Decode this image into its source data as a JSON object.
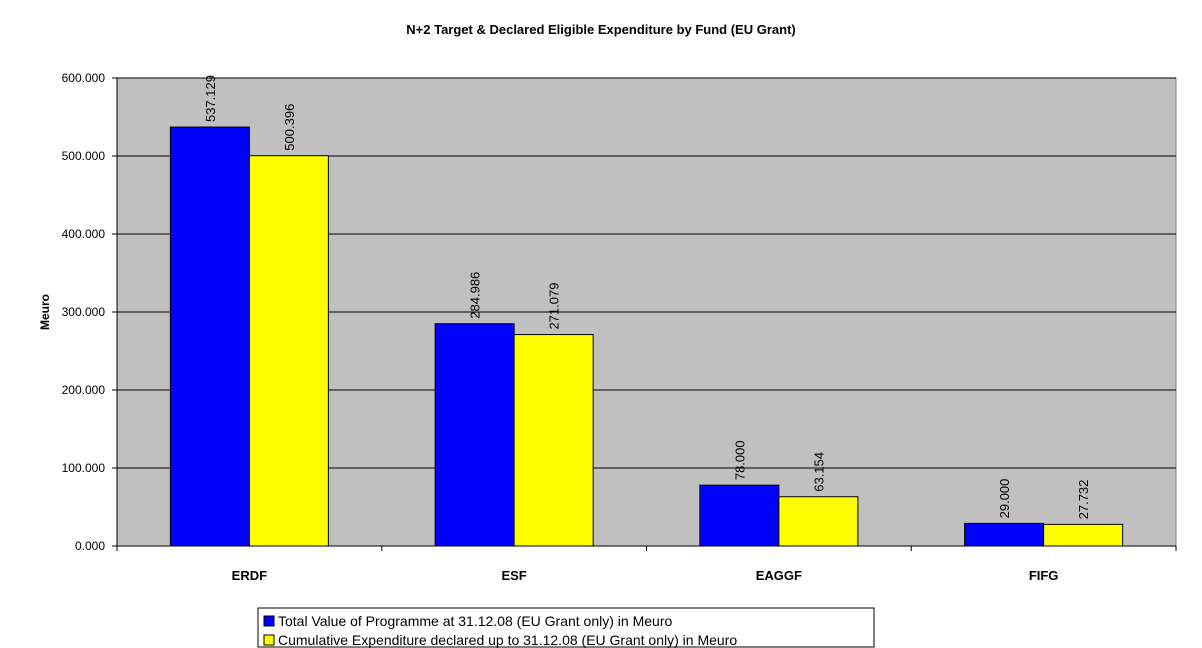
{
  "chart_data": {
    "type": "bar",
    "title": "N+2 Target & Declared Eligible Expenditure by Fund (EU Grant)",
    "y_label": "Meuro",
    "categories": [
      "ERDF",
      "ESF",
      "EAGGF",
      "FIFG"
    ],
    "series": [
      {
        "name": "Total Value of Programme at 31.12.08 (EU Grant only) in Meuro",
        "color": "#0000ff",
        "values": [
          537.129,
          284.986,
          78,
          29
        ],
        "value_labels": [
          "537.129",
          "284.986",
          "78.000",
          "29.000"
        ]
      },
      {
        "name": "Cumulative Expenditure declared up to 31.12.08 (EU Grant only) in Meuro",
        "color": "#ffff00",
        "values": [
          500.396,
          271.079,
          63.154,
          27.732
        ],
        "value_labels": [
          "500.396",
          "271.079",
          "63.154",
          "27.732"
        ]
      }
    ],
    "ylim": [
      0,
      600
    ],
    "yticks": [
      {
        "value": 0,
        "label": "0.000"
      },
      {
        "value": 100,
        "label": "100.000"
      },
      {
        "value": 200,
        "label": "200.000"
      },
      {
        "value": 300,
        "label": "300.000"
      },
      {
        "value": 400,
        "label": "400.000"
      },
      {
        "value": 500,
        "label": "500.000"
      },
      {
        "value": 600,
        "label": "600.000"
      }
    ],
    "grid": true,
    "legend": "bottom",
    "background": "#c0c0c0"
  }
}
